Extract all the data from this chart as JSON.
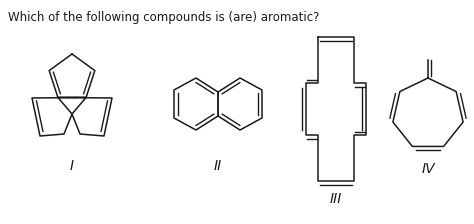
{
  "title": "Which of the following compounds is (are) aromatic?",
  "title_fontsize": 8.5,
  "labels": [
    "I",
    "II",
    "III",
    "IV"
  ],
  "background": "#ffffff",
  "line_color": "#1a1a1a",
  "lw": 1.1,
  "label_fontsize": 10
}
